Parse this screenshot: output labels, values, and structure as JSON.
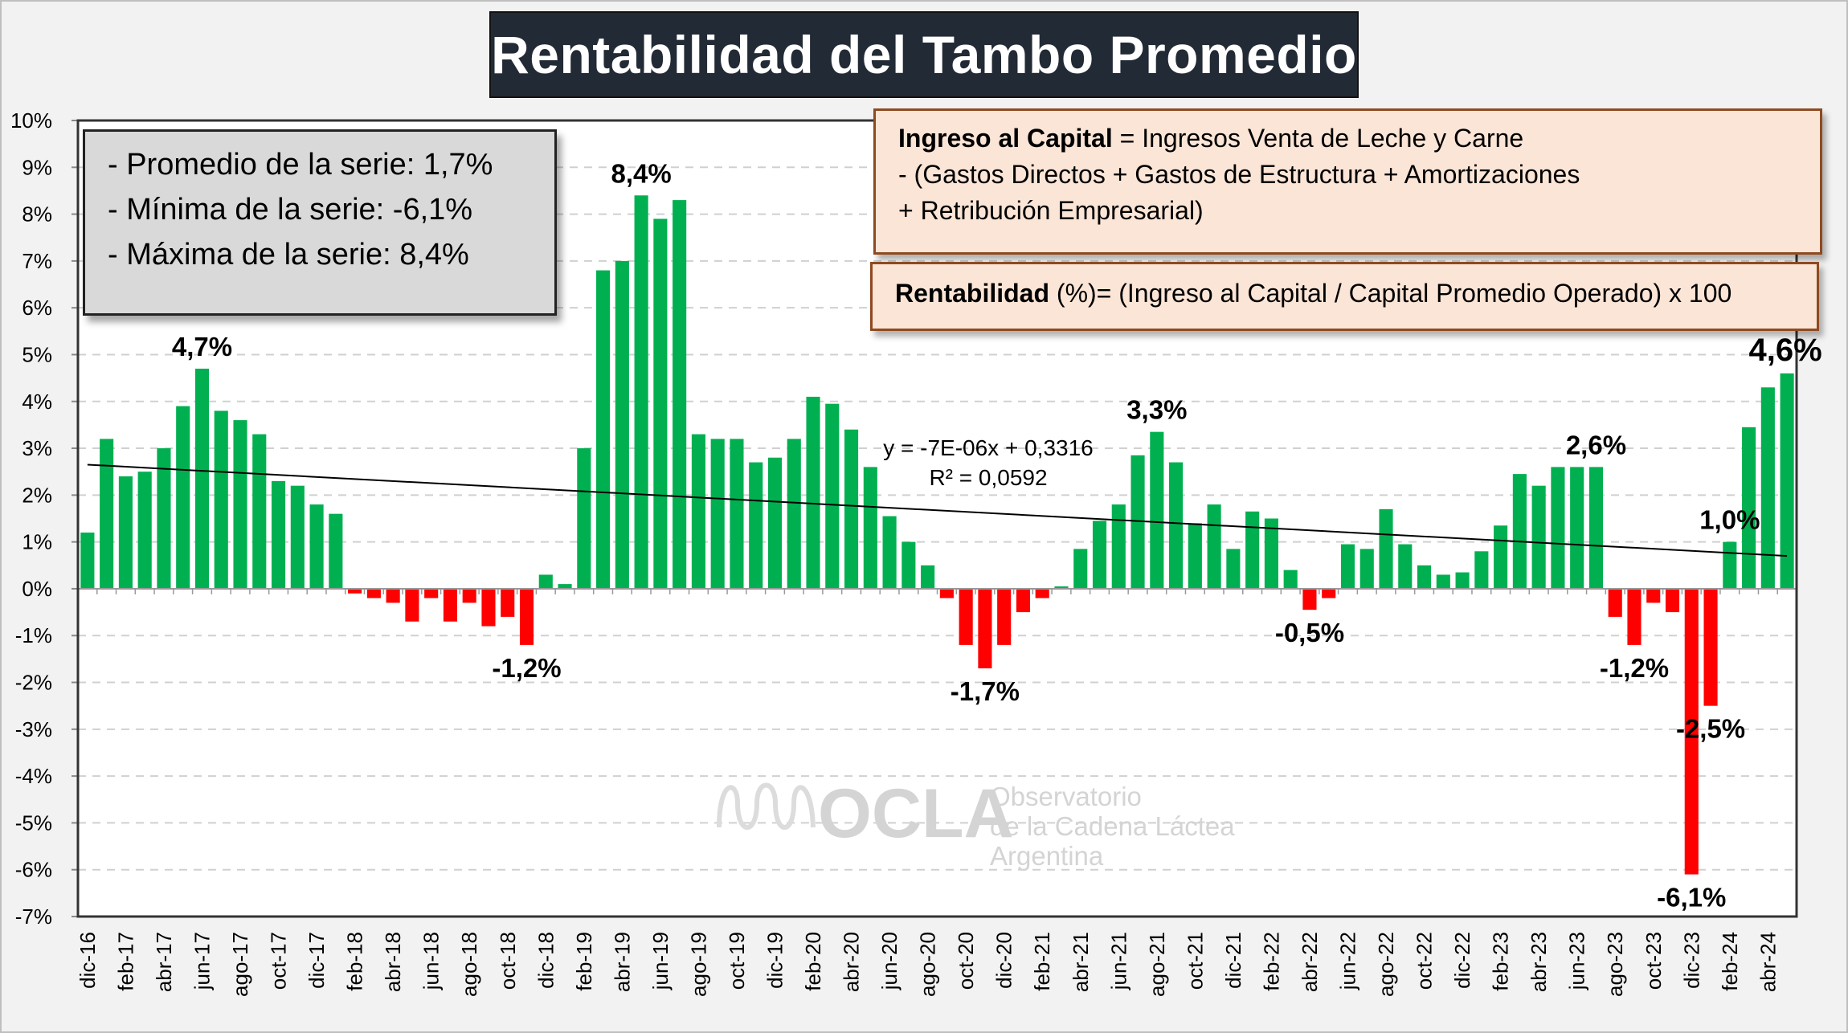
{
  "title": "Rentabilidad del Tambo Promedio",
  "stats": {
    "line1": "- Promedio de la serie: 1,7%",
    "line2": "- Mínima de la serie: -6,1%",
    "line3": "- Máxima de la serie: 8,4%"
  },
  "formula1": {
    "bold": "Ingreso al Capital",
    "line1": " = Ingresos Venta de Leche y Carne",
    "line2": "-  (Gastos Directos + Gastos de Estructura  + Amortizaciones",
    "line3": "+  Retribución Empresarial)"
  },
  "formula2": {
    "bold": "Rentabilidad",
    "rest": " (%)= (Ingreso al Capital / Capital Promedio Operado) x 100"
  },
  "watermark": {
    "logo": "OCLA",
    "line1": "Observatorio",
    "line2": "de la Cadena Láctea",
    "line3": "Argentina"
  },
  "chart_data": {
    "type": "bar",
    "title": "Rentabilidad del Tambo Promedio",
    "xlabel": "",
    "ylabel": "",
    "ylim": [
      -7,
      10
    ],
    "y_tick_labels": [
      "10%",
      "9%",
      "8%",
      "7%",
      "6%",
      "5%",
      "4%",
      "3%",
      "2%",
      "1%",
      "0%",
      "-1%",
      "-2%",
      "-3%",
      "-4%",
      "-5%",
      "-6%",
      "-7%"
    ],
    "y_ticks": [
      10,
      9,
      8,
      7,
      6,
      5,
      4,
      3,
      2,
      1,
      0,
      -1,
      -2,
      -3,
      -4,
      -5,
      -6,
      -7
    ],
    "grid": true,
    "x_tick_labels": [
      "dic-16",
      "feb-17",
      "abr-17",
      "jun-17",
      "ago-17",
      "oct-17",
      "dic-17",
      "feb-18",
      "abr-18",
      "jun-18",
      "ago-18",
      "oct-18",
      "dic-18",
      "feb-19",
      "abr-19",
      "jun-19",
      "ago-19",
      "oct-19",
      "dic-19",
      "feb-20",
      "abr-20",
      "jun-20",
      "ago-20",
      "oct-20",
      "dic-20",
      "feb-21",
      "abr-21",
      "jun-21",
      "ago-21",
      "oct-21",
      "dic-21",
      "feb-22",
      "abr-22",
      "jun-22",
      "ago-22",
      "oct-22",
      "dic-22",
      "feb-23",
      "abr-23",
      "jun-23",
      "ago-23",
      "oct-23",
      "dic-23",
      "feb-24",
      "abr-24"
    ],
    "values": [
      1.2,
      3.2,
      2.4,
      2.5,
      3.0,
      3.9,
      4.7,
      3.8,
      3.6,
      3.3,
      2.3,
      2.2,
      1.8,
      1.6,
      -0.1,
      -0.2,
      -0.3,
      -0.7,
      -0.2,
      -0.7,
      -0.3,
      -0.8,
      -0.6,
      -1.2,
      0.3,
      0.1,
      3.0,
      6.8,
      7.0,
      8.4,
      7.9,
      8.3,
      3.3,
      3.2,
      3.2,
      2.7,
      2.8,
      3.2,
      4.1,
      3.95,
      3.4,
      2.6,
      1.55,
      1.0,
      0.5,
      -0.2,
      -1.2,
      -1.7,
      -1.2,
      -0.5,
      -0.2,
      0.05,
      0.85,
      1.45,
      1.8,
      2.85,
      3.35,
      2.7,
      1.4,
      1.8,
      0.85,
      1.65,
      1.5,
      0.4,
      -0.45,
      -0.2,
      0.95,
      0.85,
      1.7,
      0.95,
      0.5,
      0.3,
      0.35,
      0.8,
      1.35,
      2.45,
      2.2,
      2.6,
      2.6,
      2.6,
      -0.6,
      -1.2,
      -0.3,
      -0.5,
      -6.1,
      -2.5,
      1.0,
      3.45,
      4.3,
      4.6
    ],
    "colors": {
      "positive": "#00b050",
      "negative": "#ff0000"
    },
    "annotations": [
      {
        "index": 6,
        "label": "4,7%"
      },
      {
        "index": 23,
        "label": "-1,2%"
      },
      {
        "index": 29,
        "label": "8,4%"
      },
      {
        "index": 47,
        "label": "-1,7%"
      },
      {
        "index": 56,
        "label": "3,3%"
      },
      {
        "index": 64,
        "label": "-0,5%"
      },
      {
        "index": 79,
        "label": "2,6%"
      },
      {
        "index": 81,
        "label": "-1,2%"
      },
      {
        "index": 84,
        "label": "-6,1%"
      },
      {
        "index": 85,
        "label": "-2,5%"
      },
      {
        "index": 86,
        "label": "1,0%"
      },
      {
        "index": 89,
        "label": "4,6%"
      }
    ],
    "trendline": {
      "type": "linear",
      "equation": "y = -7E-06x + 0,3316",
      "r2": "R² = 0,0592",
      "start_value": 2.65,
      "end_value": 0.7
    }
  }
}
